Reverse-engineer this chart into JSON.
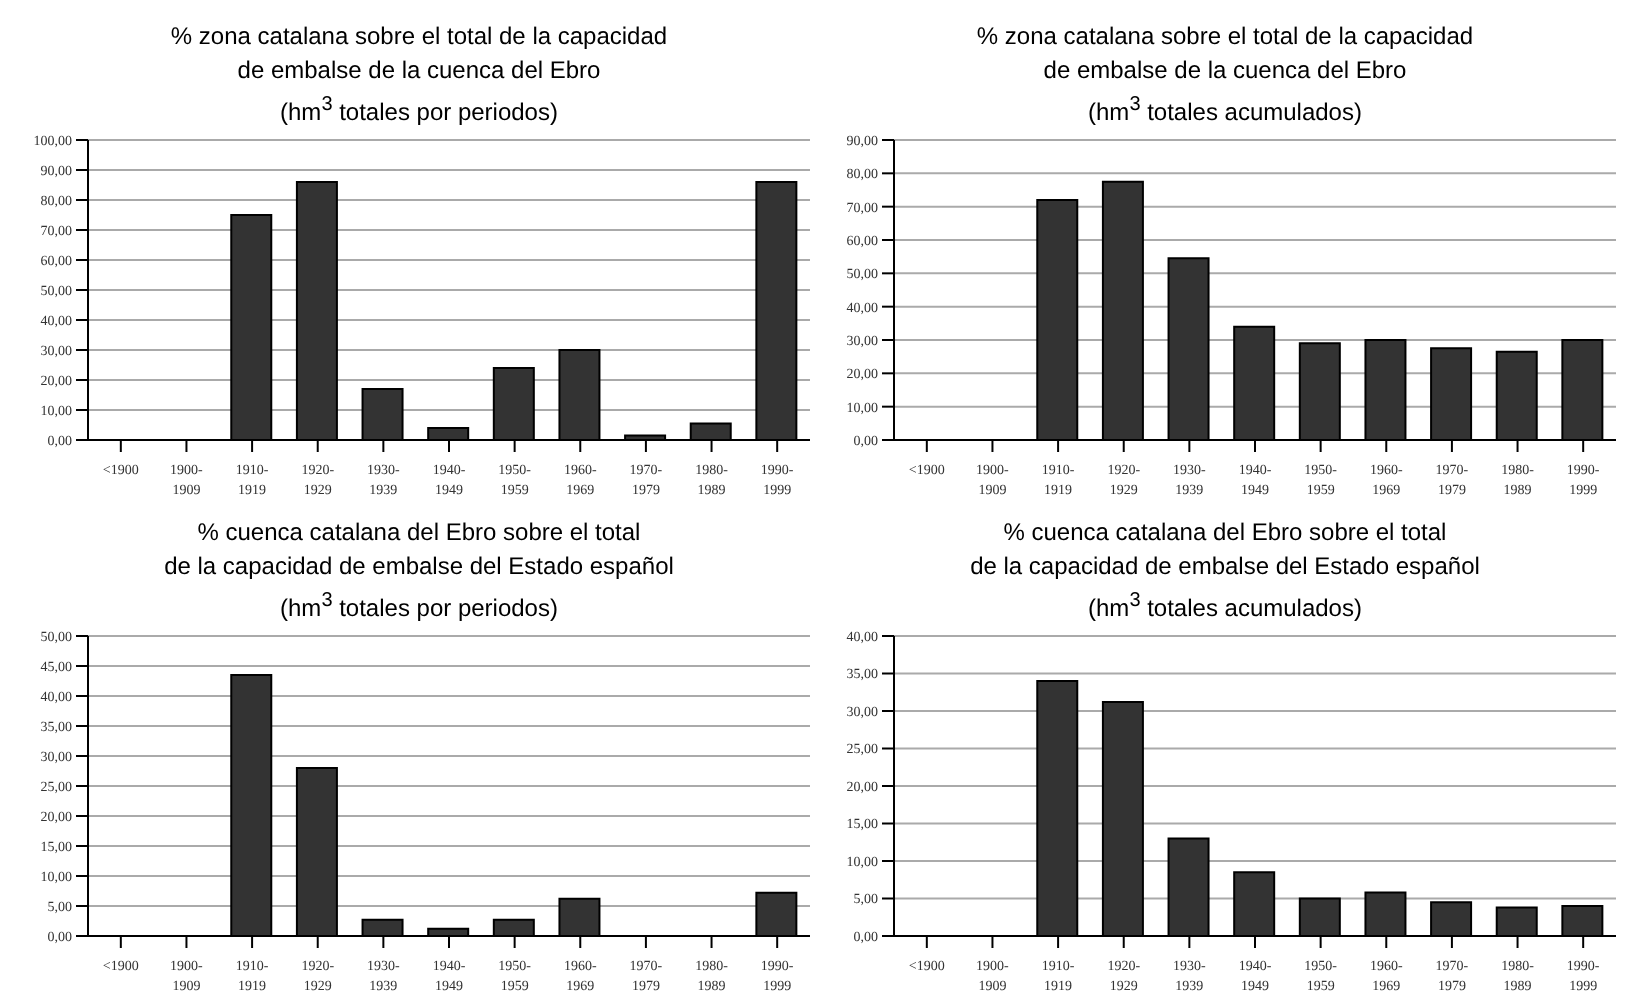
{
  "chart_data": [
    {
      "type": "bar",
      "title": "% zona catalana sobre el total de la capacidad\nde embalse de la cuenca del Ebro",
      "subtitle": "(hm$^{3}$ totales por periodos)",
      "categories": [
        "<1900",
        "1900-1909",
        "1910-1919",
        "1920-1929",
        "1930-1939",
        "1940-1949",
        "1950-1959",
        "1960-1969",
        "1970-1979",
        "1980-1989",
        "1990-1999"
      ],
      "values": [
        0,
        0,
        75,
        86,
        17,
        4,
        24,
        30,
        1.5,
        5.5,
        86
      ],
      "color": "#333333",
      "ylim": [
        0,
        100
      ],
      "yticks": [
        {
          "value": 0,
          "label": "0,00"
        },
        {
          "value": 10,
          "label": "10,00"
        },
        {
          "value": 20,
          "label": "20,00"
        },
        {
          "value": 30,
          "label": "30,00"
        },
        {
          "value": 40,
          "label": "40,00"
        },
        {
          "value": 50,
          "label": "50,00"
        },
        {
          "value": 60,
          "label": "60,00"
        },
        {
          "value": 70,
          "label": "70,00"
        },
        {
          "value": 80,
          "label": "80,00"
        },
        {
          "value": 90,
          "label": "90,00"
        },
        {
          "value": 100,
          "label": "100,00"
        }
      ],
      "grid": "y",
      "legend": false
    },
    {
      "type": "bar",
      "title": "% zona catalana sobre el total de la capacidad\nde embalse de la cuenca del Ebro",
      "subtitle": "(hm$^{3}$ totales acumulados)",
      "categories": [
        "<1900",
        "1900-1909",
        "1910-1919",
        "1920-1929",
        "1930-1939",
        "1940-1949",
        "1950-1959",
        "1960-1969",
        "1970-1979",
        "1980-1989",
        "1990-1999"
      ],
      "values": [
        0,
        0,
        72,
        77.5,
        54.5,
        34,
        29,
        30,
        27.5,
        26.5,
        30
      ],
      "color": "#333333",
      "ylim": [
        0,
        90
      ],
      "yticks": [
        {
          "value": 0,
          "label": "0,00"
        },
        {
          "value": 10,
          "label": "10,00"
        },
        {
          "value": 20,
          "label": "20,00"
        },
        {
          "value": 30,
          "label": "30,00"
        },
        {
          "value": 40,
          "label": "40,00"
        },
        {
          "value": 50,
          "label": "50,00"
        },
        {
          "value": 60,
          "label": "60,00"
        },
        {
          "value": 70,
          "label": "70,00"
        },
        {
          "value": 80,
          "label": "80,00"
        },
        {
          "value": 90,
          "label": "90,00"
        }
      ],
      "grid": "y",
      "legend": false
    },
    {
      "type": "bar",
      "title": "% cuenca catalana del Ebro sobre el total\nde la capacidad de embalse del Estado español",
      "subtitle": "(hm$^{3}$ totales por periodos)",
      "categories": [
        "<1900",
        "1900-1909",
        "1910-1919",
        "1920-1929",
        "1930-1939",
        "1940-1949",
        "1950-1959",
        "1960-1969",
        "1970-1979",
        "1980-1989",
        "1990-1999"
      ],
      "values": [
        0,
        0,
        43.5,
        28,
        2.7,
        1.2,
        2.7,
        6.2,
        0,
        0,
        7.2
      ],
      "color": "#333333",
      "ylim": [
        0,
        50
      ],
      "yticks": [
        {
          "value": 0,
          "label": "0,00"
        },
        {
          "value": 5,
          "label": "5,00"
        },
        {
          "value": 10,
          "label": "10,00"
        },
        {
          "value": 15,
          "label": "15,00"
        },
        {
          "value": 20,
          "label": "20,00"
        },
        {
          "value": 25,
          "label": "25,00"
        },
        {
          "value": 30,
          "label": "30,00"
        },
        {
          "value": 35,
          "label": "35,00"
        },
        {
          "value": 40,
          "label": "40,00"
        },
        {
          "value": 45,
          "label": "45,00"
        },
        {
          "value": 50,
          "label": "50,00"
        }
      ],
      "grid": "y",
      "legend": false
    },
    {
      "type": "bar",
      "title": "% cuenca catalana del Ebro sobre el total\nde la capacidad de embalse del Estado español",
      "subtitle": "(hm$^{3}$ totales acumulados)",
      "categories": [
        "<1900",
        "1900-1909",
        "1910-1919",
        "1920-1929",
        "1930-1939",
        "1940-1949",
        "1950-1959",
        "1960-1969",
        "1970-1979",
        "1980-1989",
        "1990-1999"
      ],
      "values": [
        0,
        0,
        34,
        31.2,
        13,
        8.5,
        5,
        5.8,
        4.5,
        3.8,
        4
      ],
      "color": "#333333",
      "ylim": [
        0,
        40
      ],
      "yticks": [
        {
          "value": 0,
          "label": "0,00"
        },
        {
          "value": 5,
          "label": "5,00"
        },
        {
          "value": 10,
          "label": "10,00"
        },
        {
          "value": 15,
          "label": "15,00"
        },
        {
          "value": 20,
          "label": "20,00"
        },
        {
          "value": 25,
          "label": "25,00"
        },
        {
          "value": 30,
          "label": "30,00"
        },
        {
          "value": 35,
          "label": "35,00"
        },
        {
          "value": 40,
          "label": "40,00"
        }
      ],
      "grid": "y",
      "legend": false
    }
  ]
}
